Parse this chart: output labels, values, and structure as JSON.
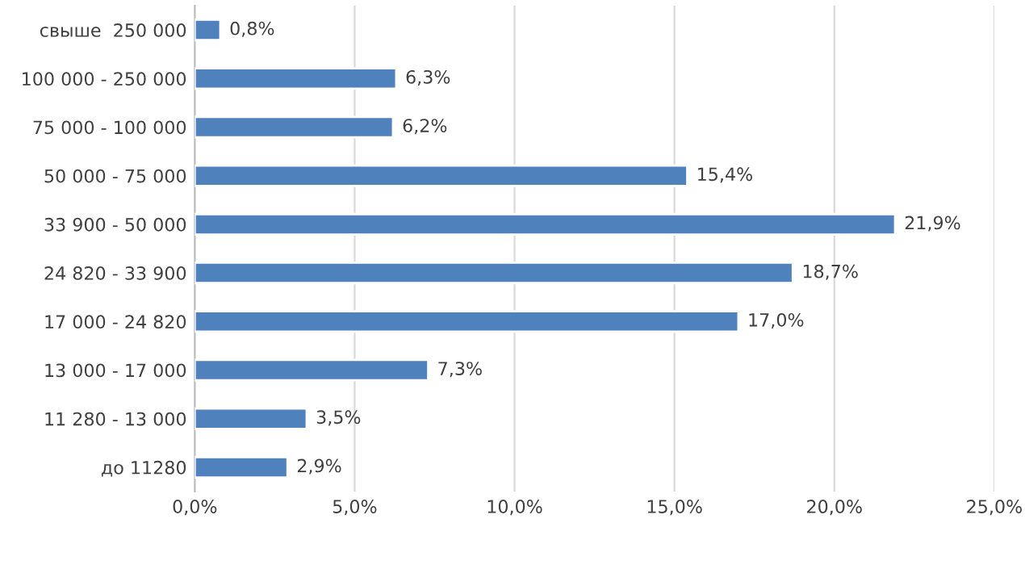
{
  "chart_data": {
    "type": "bar",
    "orientation": "horizontal",
    "categories": [
      "свыше  250 000",
      "100 000 - 250 000",
      "75 000 - 100 000",
      "50 000 - 75 000",
      "33 900 - 50 000",
      "24 820 - 33 900",
      "17 000 - 24 820",
      "13 000 - 17 000",
      "11 280 - 13 000",
      "до 11280"
    ],
    "values": [
      0.8,
      6.3,
      6.2,
      15.4,
      21.9,
      18.7,
      17.0,
      7.3,
      3.5,
      2.9
    ],
    "value_labels": [
      "0,8%",
      "6,3%",
      "6,2%",
      "15,4%",
      "21,9%",
      "18,7%",
      "17,0%",
      "7,3%",
      "3,5%",
      "2,9%"
    ],
    "color": "#4f81bd",
    "xlim": [
      0,
      25
    ],
    "xticks": [
      {
        "value": 0,
        "label": "0,0%"
      },
      {
        "value": 5,
        "label": "5,0%"
      },
      {
        "value": 10,
        "label": "10,0%"
      },
      {
        "value": 15,
        "label": "15,0%"
      },
      {
        "value": 20,
        "label": "20,0%"
      },
      {
        "value": 25,
        "label": "25,0%"
      }
    ],
    "grid": "x"
  }
}
